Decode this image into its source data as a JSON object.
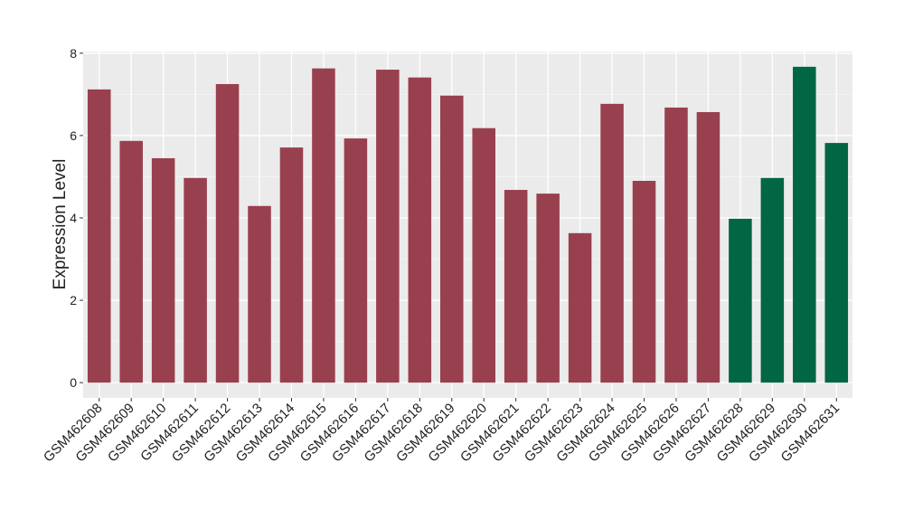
{
  "chart_data": {
    "type": "bar",
    "ylabel": "Expression Level",
    "categories": [
      "GSM462608",
      "GSM462609",
      "GSM462610",
      "GSM462611",
      "GSM462612",
      "GSM462613",
      "GSM462614",
      "GSM462615",
      "GSM462616",
      "GSM462617",
      "GSM462618",
      "GSM462619",
      "GSM462620",
      "GSM462621",
      "GSM462622",
      "GSM462623",
      "GSM462624",
      "GSM462625",
      "GSM462626",
      "GSM462627",
      "GSM462628",
      "GSM462629",
      "GSM462630",
      "GSM462631"
    ],
    "values": [
      7.12,
      5.87,
      5.45,
      4.97,
      7.25,
      4.29,
      5.71,
      7.63,
      5.93,
      7.6,
      7.41,
      6.97,
      6.18,
      4.68,
      4.59,
      3.63,
      6.77,
      4.9,
      6.68,
      6.57,
      3.98,
      4.97,
      7.67,
      5.82
    ],
    "colors": [
      "#99404f",
      "#99404f",
      "#99404f",
      "#99404f",
      "#99404f",
      "#99404f",
      "#99404f",
      "#99404f",
      "#99404f",
      "#99404f",
      "#99404f",
      "#99404f",
      "#99404f",
      "#99404f",
      "#99404f",
      "#99404f",
      "#99404f",
      "#99404f",
      "#99404f",
      "#99404f",
      "#006644",
      "#006644",
      "#006644",
      "#006644"
    ],
    "ylim": [
      -0.37,
      8.04
    ],
    "yticks": [
      0,
      2,
      4,
      6,
      8
    ],
    "minor_yticks": [
      1,
      3,
      5,
      7
    ],
    "grid": true
  }
}
